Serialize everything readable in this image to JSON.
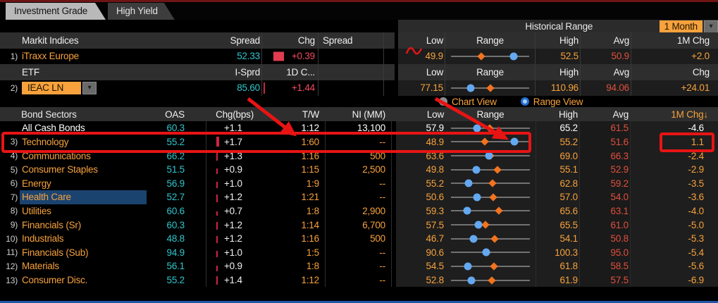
{
  "colors": {
    "orange": "#f7a23c",
    "cyan": "#2fc6cc",
    "red": "#f14b61",
    "avg_red": "#e0503c",
    "diamond_orange": "#f2731f",
    "dot_blue": "#63a8f0",
    "selected_row_bg": "#1b4370",
    "annotation_red": "#e81414"
  },
  "icons": {
    "dropdown_arrow": "▾",
    "sort_down_arrow": "↓"
  },
  "tabs": [
    {
      "label": "Investment Grade",
      "active": true
    },
    {
      "label": "High Yield",
      "active": false
    }
  ],
  "markit_table": {
    "title": "Markit Indices",
    "headers": {
      "spread": "Spread",
      "chg": "Chg",
      "spread2": "Spread"
    },
    "row": {
      "num": "1)",
      "name": "iTraxx Europe",
      "spread": "52.33",
      "chg": "+0.39"
    }
  },
  "etf_table": {
    "title": "ETF",
    "headers": {
      "spread": "I-Sprd",
      "chg": "1D C..."
    },
    "row": {
      "num": "2)",
      "name": "IEAC LN",
      "spread": "85.60",
      "chg": "+1.44"
    }
  },
  "historical_range": {
    "title": "Historical Range",
    "period_selector": "1 Month",
    "top_headers": [
      "Low",
      "Range",
      "High",
      "Avg",
      "1M Chg"
    ],
    "mid_headers": [
      "Low",
      "Range",
      "High",
      "Avg",
      "Chg"
    ],
    "markit_range": {
      "low": "49.9",
      "high": "52.5",
      "avg": "50.9",
      "chg": "+2.0"
    },
    "etf_range": {
      "low": "77.15",
      "high": "110.96",
      "avg": "94.06",
      "chg": "+24.01"
    },
    "view_toggle": [
      {
        "label": "Chart View",
        "selected": false
      },
      {
        "label": "Range View",
        "selected": true
      }
    ]
  },
  "sectors": {
    "headers": {
      "name": "Bond Sectors",
      "oas": "OAS",
      "chg": "Chg(bps)",
      "tw": "T/W",
      "ni": "NI (MM)",
      "low": "Low",
      "range": "Range",
      "high": "High",
      "avg": "Avg",
      "chg1m": "1M Chg",
      "sort_indicator": "↓"
    },
    "rows": [
      {
        "num": "",
        "name": "All Cash Bonds",
        "oas": "60.3",
        "chg": "+1.1",
        "tw": "1:12",
        "ni": "13,100",
        "low": "57.9",
        "high": "65.2",
        "avg": "61.5",
        "chg1m": "-4.6",
        "bright": true
      },
      {
        "num": "3)",
        "name": "Technology",
        "oas": "55.2",
        "chg": "+1.7",
        "tw": "1:60",
        "ni": "--",
        "low": "48.9",
        "high": "55.2",
        "avg": "51.6",
        "chg1m": "1.1"
      },
      {
        "num": "4)",
        "name": "Communications",
        "oas": "66.2",
        "chg": "+1.3",
        "tw": "1:16",
        "ni": "500",
        "low": "63.6",
        "high": "69.0",
        "avg": "66.3",
        "chg1m": "-2.4"
      },
      {
        "num": "5)",
        "name": "Consumer Staples",
        "oas": "51.5",
        "chg": "+0.9",
        "tw": "1:15",
        "ni": "2,500",
        "low": "49.8",
        "high": "55.1",
        "avg": "52.9",
        "chg1m": "-2.9"
      },
      {
        "num": "6)",
        "name": "Energy",
        "oas": "56.9",
        "chg": "+1.0",
        "tw": "1:9",
        "ni": "--",
        "low": "55.2",
        "high": "62.8",
        "avg": "59.2",
        "chg1m": "-3.5"
      },
      {
        "num": "7)",
        "name": "Health Care",
        "oas": "52.7",
        "chg": "+1.2",
        "tw": "1:21",
        "ni": "--",
        "low": "50.6",
        "high": "57.0",
        "avg": "54.0",
        "chg1m": "-3.6",
        "selected": true
      },
      {
        "num": "8)",
        "name": "Utilities",
        "oas": "60.6",
        "chg": "+0.7",
        "tw": "1:8",
        "ni": "2,900",
        "low": "59.3",
        "high": "65.6",
        "avg": "63.1",
        "chg1m": "-4.0"
      },
      {
        "num": "9)",
        "name": "Financials (Sr)",
        "oas": "60.3",
        "chg": "+1.2",
        "tw": "1:14",
        "ni": "6,700",
        "low": "57.5",
        "high": "65.5",
        "avg": "61.0",
        "chg1m": "-5.0"
      },
      {
        "num": "10)",
        "name": "Industrials",
        "oas": "48.8",
        "chg": "+1.2",
        "tw": "1:16",
        "ni": "500",
        "low": "46.7",
        "high": "54.1",
        "avg": "50.8",
        "chg1m": "-5.3"
      },
      {
        "num": "11)",
        "name": "Financials (Sub)",
        "oas": "94.9",
        "chg": "+1.0",
        "tw": "1:5",
        "ni": "--",
        "low": "90.6",
        "high": "100.3",
        "avg": "95.0",
        "chg1m": "-5.4"
      },
      {
        "num": "12)",
        "name": "Materials",
        "oas": "56.1",
        "chg": "+0.9",
        "tw": "1:8",
        "ni": "--",
        "low": "54.5",
        "high": "61.8",
        "avg": "58.5",
        "chg1m": "-5.6"
      },
      {
        "num": "13)",
        "name": "Consumer Disc.",
        "oas": "55.2",
        "chg": "+1.4",
        "tw": "1:12",
        "ni": "--",
        "low": "52.8",
        "high": "61.9",
        "avg": "57.5",
        "chg1m": "-6.9"
      }
    ]
  }
}
